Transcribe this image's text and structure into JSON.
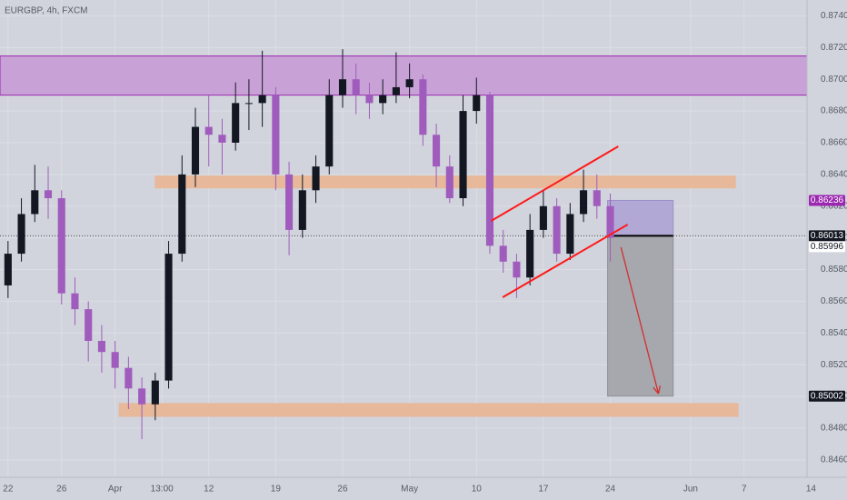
{
  "chart_data": {
    "type": "candlestick",
    "title": "EURGBP, 4h, FXCM",
    "up_color": "#131722",
    "down_color": "#a05cbc",
    "x": [
      0,
      1,
      2,
      3,
      4,
      5,
      6,
      7,
      8,
      9,
      10,
      11,
      12,
      13,
      14,
      15,
      16,
      17,
      18,
      19,
      20,
      21,
      22,
      23,
      24,
      25,
      26,
      27,
      28,
      29,
      30,
      31,
      32,
      33,
      34,
      35,
      36,
      37,
      38,
      39,
      40,
      41,
      42,
      43,
      44,
      45
    ],
    "open": [
      0.857,
      0.859,
      0.8615,
      0.863,
      0.8625,
      0.8565,
      0.8555,
      0.8535,
      0.8528,
      0.8518,
      0.8505,
      0.8495,
      0.851,
      0.859,
      0.864,
      0.867,
      0.8665,
      0.866,
      0.8685,
      0.8685,
      0.869,
      0.864,
      0.8605,
      0.863,
      0.8645,
      0.869,
      0.87,
      0.869,
      0.8685,
      0.869,
      0.8695,
      0.87,
      0.8665,
      0.8645,
      0.8625,
      0.868,
      0.869,
      0.8595,
      0.8585,
      0.8575,
      0.8605,
      0.862,
      0.859,
      0.8615,
      0.863,
      0.862
    ],
    "high": [
      0.8598,
      0.8625,
      0.8646,
      0.8645,
      0.863,
      0.8575,
      0.856,
      0.8545,
      0.8535,
      0.8525,
      0.8512,
      0.8515,
      0.8598,
      0.8652,
      0.8682,
      0.869,
      0.8675,
      0.8698,
      0.87,
      0.8718,
      0.8695,
      0.8648,
      0.864,
      0.8652,
      0.87,
      0.8719,
      0.871,
      0.8698,
      0.87,
      0.8717,
      0.871,
      0.8703,
      0.8672,
      0.8652,
      0.869,
      0.8701,
      0.8692,
      0.8605,
      0.859,
      0.8615,
      0.863,
      0.8625,
      0.8622,
      0.8643,
      0.864,
      0.8628
    ],
    "low": [
      0.8562,
      0.8585,
      0.861,
      0.8612,
      0.8558,
      0.8545,
      0.8522,
      0.8515,
      0.8505,
      0.8492,
      0.8473,
      0.8485,
      0.8505,
      0.8585,
      0.8632,
      0.8645,
      0.864,
      0.8655,
      0.8668,
      0.867,
      0.863,
      0.8589,
      0.86,
      0.8622,
      0.864,
      0.8682,
      0.8678,
      0.8675,
      0.8678,
      0.8685,
      0.8688,
      0.8658,
      0.8632,
      0.8622,
      0.862,
      0.8672,
      0.859,
      0.8578,
      0.8562,
      0.857,
      0.86,
      0.8585,
      0.8586,
      0.861,
      0.8612,
      0.8585
    ],
    "close": [
      0.859,
      0.8615,
      0.863,
      0.8625,
      0.8565,
      0.8555,
      0.8535,
      0.8528,
      0.8518,
      0.8505,
      0.8495,
      0.851,
      0.859,
      0.864,
      0.867,
      0.8665,
      0.866,
      0.8685,
      0.8685,
      0.869,
      0.864,
      0.8605,
      0.863,
      0.8645,
      0.869,
      0.87,
      0.869,
      0.8685,
      0.869,
      0.8695,
      0.87,
      0.8665,
      0.8645,
      0.8625,
      0.868,
      0.869,
      0.8595,
      0.8585,
      0.8575,
      0.8605,
      0.862,
      0.859,
      0.8615,
      0.863,
      0.862,
      0.86
    ],
    "xlim": [
      -0.6,
      59.7
    ],
    "ylim": [
      0.8449,
      0.875
    ],
    "xticks": [
      {
        "value": 0,
        "label": "22"
      },
      {
        "value": 4,
        "label": "26"
      },
      {
        "value": 8,
        "label": "Apr"
      },
      {
        "value": 11.5,
        "label": "13:00"
      },
      {
        "value": 15,
        "label": "12"
      },
      {
        "value": 20,
        "label": "19"
      },
      {
        "value": 25,
        "label": "26"
      },
      {
        "value": 30,
        "label": "May"
      },
      {
        "value": 35,
        "label": "10"
      },
      {
        "value": 40,
        "label": "17"
      },
      {
        "value": 45,
        "label": "24"
      },
      {
        "value": 51,
        "label": "Jun"
      },
      {
        "value": 55,
        "label": "7"
      },
      {
        "value": 60,
        "label": "14"
      }
    ],
    "yticks": [
      {
        "value": 0.846,
        "label": "0.84600"
      },
      {
        "value": 0.848,
        "label": "0.84800"
      },
      {
        "value": 0.85,
        "label": "0.85000"
      },
      {
        "value": 0.852,
        "label": "0.85200"
      },
      {
        "value": 0.854,
        "label": "0.85400"
      },
      {
        "value": 0.856,
        "label": "0.85600"
      },
      {
        "value": 0.858,
        "label": "0.85800"
      },
      {
        "value": 0.86,
        "label": "0.86000"
      },
      {
        "value": 0.862,
        "label": "0.86200"
      },
      {
        "value": 0.864,
        "label": "0.86400"
      },
      {
        "value": 0.866,
        "label": "0.86600"
      },
      {
        "value": 0.868,
        "label": "0.86800"
      },
      {
        "value": 0.87,
        "label": "0.87000"
      },
      {
        "value": 0.872,
        "label": "0.87200"
      },
      {
        "value": 0.874,
        "label": "0.87400"
      }
    ],
    "grid": true,
    "zones": [
      {
        "low": 0.869,
        "high": 0.87147,
        "x": [
          -0.6,
          59.7
        ],
        "color": "#c8a2d6",
        "border": "#9c27b0"
      },
      {
        "low": 0.86315,
        "high": 0.8639,
        "x": [
          11.0,
          54.35
        ],
        "color": "#e8b89a",
        "border": "#e8b89a"
      },
      {
        "low": 0.84874,
        "high": 0.84955,
        "x": [
          8.3,
          54.55
        ],
        "color": "#e8b89a",
        "border": "#e8b89a"
      }
    ],
    "lines": [
      {
        "x": [
          36.1,
          45.6
        ],
        "y": [
          0.86107,
          0.86577
        ],
        "color": "#ff1a1a"
      },
      {
        "x": [
          36.96,
          46.3
        ],
        "y": [
          0.85625,
          0.86084
        ],
        "color": "#ff1a1a"
      }
    ],
    "arrow": {
      "x": [
        45.8,
        48.6
      ],
      "y": [
        0.85941,
        0.85017
      ],
      "color": "#d32f2f"
    },
    "position": {
      "entry": 0.86013,
      "stop": 0.86236,
      "target": 0.85002,
      "x": [
        44.8,
        49.7
      ]
    },
    "price_labels": [
      {
        "value": 0.86236,
        "bg": "#9c27b0",
        "fg": "#ffffff"
      },
      {
        "value": 0.86013,
        "bg": "#131722",
        "fg": "#ffffff",
        "dotted": true
      },
      {
        "value": 0.85996,
        "bg": "#ffffff",
        "fg": "#131722"
      },
      {
        "value": 0.85002,
        "bg": "#131722",
        "fg": "#ffffff"
      }
    ]
  }
}
